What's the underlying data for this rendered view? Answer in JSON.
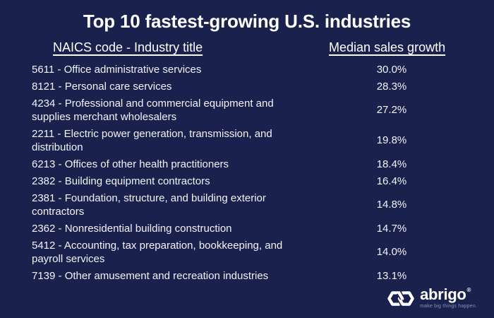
{
  "colors": {
    "background": "#1b214d",
    "text": "#ffffff",
    "tagline": "#8d92ae"
  },
  "chart_data": {
    "type": "table",
    "title": "Top 10 fastest-growing U.S. industries",
    "columns": [
      "NAICS code - Industry title",
      "Median sales growth"
    ],
    "rows": [
      {
        "code": "5611",
        "industry": "Office administrative services",
        "growth": "30.0%",
        "growth_value": 30.0
      },
      {
        "code": "8121",
        "industry": "Personal care services",
        "growth": "28.3%",
        "growth_value": 28.3
      },
      {
        "code": "4234",
        "industry": "Professional and commercial equipment and supplies merchant wholesalers",
        "growth": "27.2%",
        "growth_value": 27.2
      },
      {
        "code": "2211",
        "industry": "Electric power generation, transmission, and distribution",
        "growth": "19.8%",
        "growth_value": 19.8
      },
      {
        "code": "6213",
        "industry": "Offices of other health practitioners",
        "growth": "18.4%",
        "growth_value": 18.4
      },
      {
        "code": "2382",
        "industry": "Building equipment contractors",
        "growth": "16.4%",
        "growth_value": 16.4
      },
      {
        "code": "2381",
        "industry": "Foundation, structure, and building exterior contractors",
        "growth": "14.8%",
        "growth_value": 14.8
      },
      {
        "code": "2362",
        "industry": "Nonresidential building construction",
        "growth": "14.7%",
        "growth_value": 14.7
      },
      {
        "code": "5412",
        "industry": "Accounting, tax preparation, bookkeeping, and payroll services",
        "growth": "14.0%",
        "growth_value": 14.0
      },
      {
        "code": "7139",
        "industry": "Other amusement and recreation industries",
        "growth": "13.1%",
        "growth_value": 13.1
      }
    ]
  },
  "logo": {
    "name": "abrigo",
    "trademark": "®",
    "tagline": "make big things happen."
  }
}
